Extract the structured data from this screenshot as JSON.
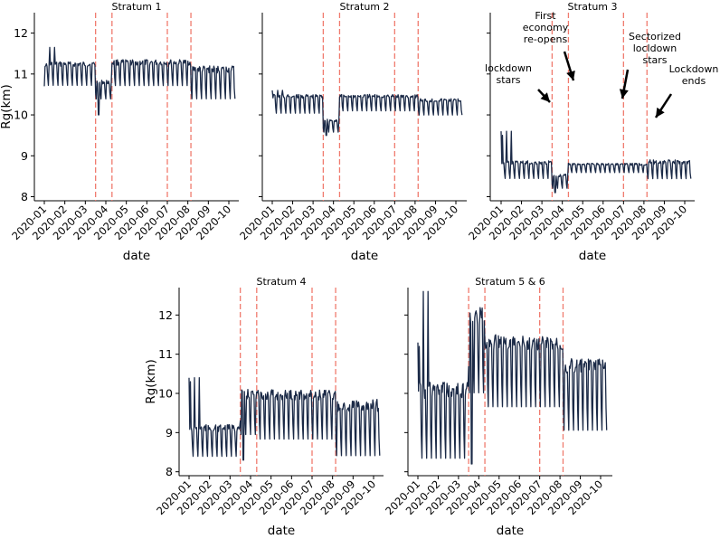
{
  "chart_data": {
    "type": "line",
    "ylabel": "Rg(km)",
    "xlabel": "date",
    "x_tick_labels": [
      "2020-01",
      "2020-02",
      "2020-03",
      "2020-04",
      "2020-05",
      "2020-06",
      "2020-07",
      "2020-08",
      "2020-09",
      "2020-10"
    ],
    "vlines_date_index": [
      2.5,
      3.3,
      6.0,
      7.15
    ],
    "line_color": "#1b2a47",
    "vline_color": "#f07b6e",
    "panels": [
      {
        "id": "s1",
        "title": "Stratum 1",
        "ylim": [
          7.9,
          12.5
        ],
        "yticks": [
          8,
          9,
          10,
          11,
          12
        ],
        "show_ylabel": true,
        "series": {
          "pre": [
            10.8,
            11.3
          ],
          "lock": [
            10.45,
            10.85
          ],
          "reopen": [
            10.8,
            11.35
          ],
          "late": [
            10.5,
            11.2
          ],
          "start": 10.7,
          "peak": 11.65,
          "dip": 10.0
        }
      },
      {
        "id": "s2",
        "title": "Stratum 2",
        "ylim": [
          7.9,
          12.5
        ],
        "yticks": [
          8,
          9,
          10,
          11,
          12
        ],
        "show_ylabel": false,
        "series": {
          "pre": [
            10.1,
            10.5
          ],
          "lock": [
            9.62,
            9.9
          ],
          "reopen": [
            10.15,
            10.5
          ],
          "late": [
            10.05,
            10.4
          ],
          "start": 10.6,
          "peak": 10.6,
          "dip": 9.5
        }
      },
      {
        "id": "s3",
        "title": "Stratum 3",
        "ylim": [
          7.9,
          12.5
        ],
        "yticks": [
          8,
          9,
          10,
          11,
          12
        ],
        "show_ylabel": false,
        "series": {
          "pre": [
            8.5,
            8.88
          ],
          "lock": [
            8.25,
            8.55
          ],
          "reopen": [
            8.62,
            8.82
          ],
          "late": [
            8.5,
            8.9
          ],
          "start": 9.6,
          "peak": 9.6,
          "dip": 8.1
        }
      },
      {
        "id": "s4",
        "title": "Stratum 4",
        "ylim": [
          7.9,
          12.7
        ],
        "yticks": [
          8,
          9,
          10,
          11,
          12
        ],
        "show_ylabel": true,
        "series": {
          "pre": [
            8.5,
            9.2
          ],
          "lock": [
            9.1,
            10.1
          ],
          "reopen": [
            9.0,
            10.1
          ],
          "late": [
            8.6,
            9.85
          ],
          "start": 10.4,
          "peak": 10.4,
          "dip": 8.3
        }
      },
      {
        "id": "s56",
        "title": "Stratum 5 & 6",
        "ylim": [
          7.9,
          12.7
        ],
        "yticks": [
          8,
          9,
          10,
          11,
          12
        ],
        "show_ylabel": false,
        "series": {
          "pre": [
            8.6,
            10.3
          ],
          "lock": [
            10.3,
            12.2
          ],
          "reopen": [
            9.9,
            11.5
          ],
          "late": [
            9.3,
            10.9
          ],
          "start": 11.3,
          "peak": 12.6,
          "dip": 8.2
        }
      }
    ],
    "annotations": [
      {
        "label": "lockdown\nstars"
      },
      {
        "label": "First\neconomy\nre-opens"
      },
      {
        "label": "Sectorized\nlocldown\nstars"
      },
      {
        "label": "Lockdown\nends"
      }
    ]
  }
}
